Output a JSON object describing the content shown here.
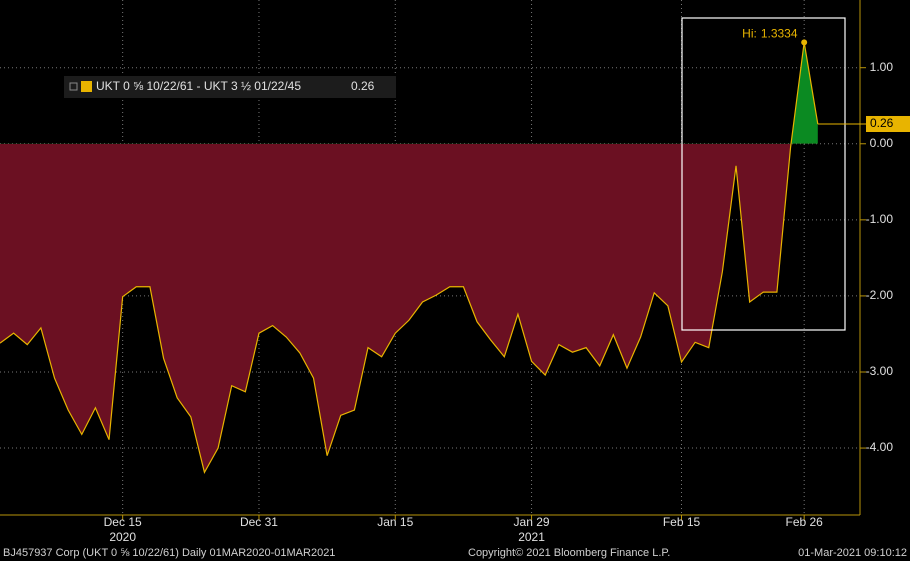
{
  "chart_data": {
    "type": "area",
    "legend": "UKT 0 ⅝ 10/22/61 - UKT 3 ½ 01/22/45",
    "hi_label": "Hi:",
    "categories": [
      null,
      null,
      null,
      null,
      null,
      null,
      null,
      null,
      null,
      "Dec 15",
      null,
      null,
      null,
      null,
      null,
      null,
      null,
      null,
      null,
      "Dec 31",
      null,
      null,
      null,
      null,
      null,
      null,
      null,
      null,
      null,
      "Jan 15",
      null,
      null,
      null,
      null,
      null,
      null,
      null,
      null,
      null,
      "Jan 29",
      null,
      null,
      null,
      null,
      null,
      null,
      null,
      null,
      null,
      null,
      "Feb 15",
      null,
      null,
      null,
      null,
      null,
      null,
      null,
      null,
      "Feb 26",
      null
    ],
    "year_labels": [
      null,
      null,
      null,
      null,
      null,
      null,
      null,
      null,
      null,
      "2020",
      null,
      null,
      null,
      null,
      null,
      null,
      null,
      null,
      null,
      null,
      null,
      null,
      null,
      null,
      null,
      null,
      null,
      null,
      null,
      null,
      null,
      null,
      null,
      null,
      null,
      null,
      null,
      null,
      null,
      "2021",
      null,
      null,
      null,
      null,
      null,
      null,
      null,
      null,
      null,
      null,
      null,
      null,
      null,
      null,
      null,
      null,
      null,
      null,
      null,
      null,
      null
    ],
    "series": [
      {
        "name": "UKT 0 ⅝ 10/22/61 - UKT 3 ½ 01/22/45",
        "color": "#e8b400",
        "values": [
          -2.62,
          -2.49,
          -2.64,
          -2.42,
          -3.08,
          -3.5,
          -3.82,
          -3.47,
          -3.89,
          -2.01,
          -1.88,
          -1.88,
          -2.82,
          -3.34,
          -3.59,
          -4.32,
          -4.0,
          -3.18,
          -3.26,
          -2.49,
          -2.39,
          -2.54,
          -2.75,
          -3.08,
          -4.1,
          -3.57,
          -3.5,
          -2.68,
          -2.8,
          -2.49,
          -2.32,
          -2.08,
          -1.99,
          -1.88,
          -1.88,
          -2.34,
          -2.58,
          -2.8,
          -2.24,
          -2.86,
          -3.04,
          -2.64,
          -2.74,
          -2.68,
          -2.92,
          -2.51,
          -2.95,
          -2.54,
          -1.96,
          -2.13,
          -2.87,
          -2.61,
          -2.68,
          -1.68,
          -0.29,
          -2.08,
          -1.95,
          -1.95,
          -0.05,
          1.3334,
          0.26
        ]
      }
    ],
    "negative_color": "#6b1022",
    "positive_color": "#0b8a22",
    "ylim": [
      -4.88,
      1.89
    ],
    "yticks": [
      {
        "value": 1,
        "label": "1.00"
      },
      {
        "value": 0,
        "label": "0.00"
      },
      {
        "value": -1,
        "label": "-1.00"
      },
      {
        "value": -2,
        "label": "-2.00"
      },
      {
        "value": -3,
        "label": "-3.00"
      },
      {
        "value": -4,
        "label": "-4.00"
      }
    ],
    "grid": true,
    "footer_left": "BJ457937 Corp (UKT 0 ⅝ 10/22/61)  Daily 01MAR2020-01MAR2021",
    "footer_center": "Copyright© 2021 Bloomberg Finance L.P.",
    "footer_right": "01-Mar-2021 09:10:12"
  }
}
